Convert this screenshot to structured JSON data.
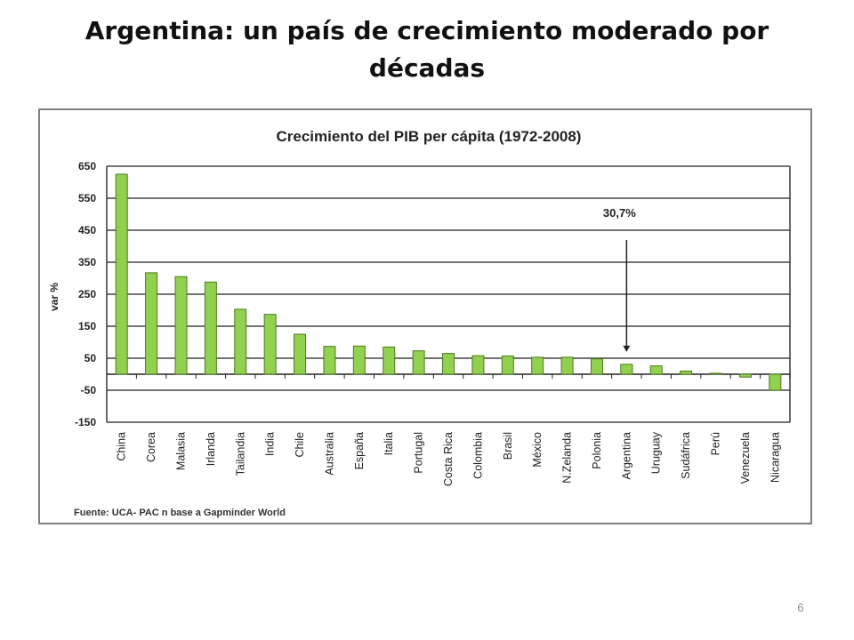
{
  "slide": {
    "title": "Argentina: un país de crecimiento moderado por décadas",
    "page_number": "6"
  },
  "chart_data": {
    "type": "bar",
    "title": "Crecimiento del PIB per cápita (1972-2008)",
    "ylabel": "var %",
    "xlabel": "",
    "ylim": [
      -150,
      650
    ],
    "yticks": [
      650,
      550,
      450,
      350,
      250,
      150,
      50,
      -50,
      -150
    ],
    "grid": true,
    "categories": [
      "China",
      "Corea",
      "Malasia",
      "Irlanda",
      "Tailandia",
      "India",
      "Chile",
      "Australia",
      "España",
      "Italia",
      "Portugal",
      "Costa Rica",
      "Colombia",
      "Brasil",
      "México",
      "N.Zelanda",
      "Polonia",
      "Argentina",
      "Uruguay",
      "Sudáfrica",
      "Perú",
      "Venezuela",
      "Nicaragua"
    ],
    "values": [
      625,
      317,
      305,
      288,
      203,
      187,
      125,
      87,
      88,
      85,
      73,
      65,
      58,
      57,
      53,
      53,
      48,
      31,
      26,
      10,
      3,
      -9,
      -50
    ],
    "bar_color": "#92d050",
    "annotation": {
      "text": "30,7%",
      "target": "Argentina"
    },
    "source": "Fuente: UCA- PAC n base a Gapminder World"
  }
}
